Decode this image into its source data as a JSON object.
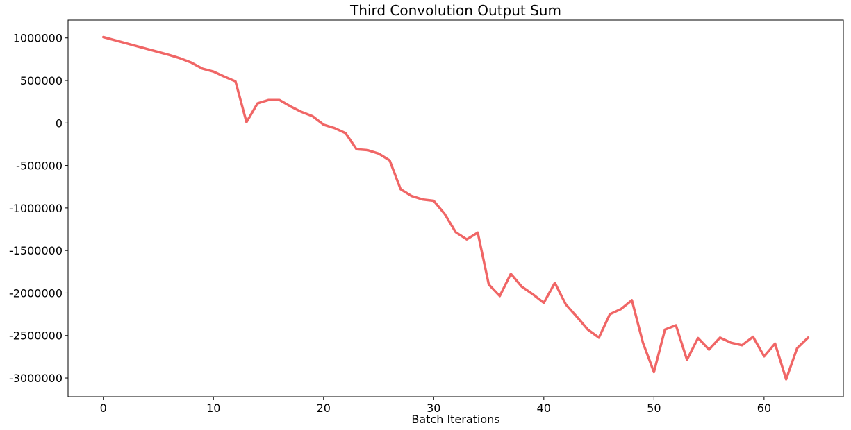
{
  "chart_data": {
    "type": "line",
    "title": "Third Convolution Output Sum",
    "xlabel": "Batch Iterations",
    "ylabel": "",
    "xlim": [
      -3.2,
      67.2
    ],
    "ylim": [
      -3220000,
      1210000
    ],
    "xticks": [
      0,
      10,
      20,
      30,
      40,
      50,
      60
    ],
    "yticks": [
      1000000,
      500000,
      0,
      -500000,
      -1000000,
      -1500000,
      -2000000,
      -2500000,
      -3000000
    ],
    "grid": false,
    "legend": "none",
    "series": [
      {
        "color": "#f06666",
        "x": [
          0,
          1,
          2,
          3,
          4,
          5,
          6,
          7,
          8,
          9,
          10,
          11,
          12,
          13,
          14,
          15,
          16,
          17,
          18,
          19,
          20,
          21,
          22,
          23,
          24,
          25,
          26,
          27,
          28,
          29,
          30,
          31,
          32,
          33,
          34,
          35,
          36,
          37,
          38,
          39,
          40,
          41,
          42,
          43,
          44,
          45,
          46,
          47,
          48,
          49,
          50,
          51,
          52,
          53,
          54,
          55,
          56,
          57,
          58,
          59,
          60,
          61,
          62,
          63,
          64
        ],
        "values": [
          1010000,
          975000,
          940000,
          905000,
          870000,
          835000,
          800000,
          760000,
          710000,
          640000,
          605000,
          545000,
          490000,
          10000,
          230000,
          270000,
          270000,
          195000,
          130000,
          80000,
          -20000,
          -60000,
          -120000,
          -310000,
          -320000,
          -360000,
          -440000,
          -780000,
          -860000,
          -900000,
          -915000,
          -1070000,
          -1285000,
          -1370000,
          -1290000,
          -1900000,
          -2035000,
          -1775000,
          -1925000,
          -2015000,
          -2115000,
          -1880000,
          -2135000,
          -2280000,
          -2430000,
          -2525000,
          -2250000,
          -2190000,
          -2085000,
          -2585000,
          -2930000,
          -2430000,
          -2380000,
          -2785000,
          -2530000,
          -2665000,
          -2525000,
          -2585000,
          -2615000,
          -2515000,
          -2745000,
          -2595000,
          -3015000,
          -2650000,
          -2525000
        ]
      }
    ]
  }
}
